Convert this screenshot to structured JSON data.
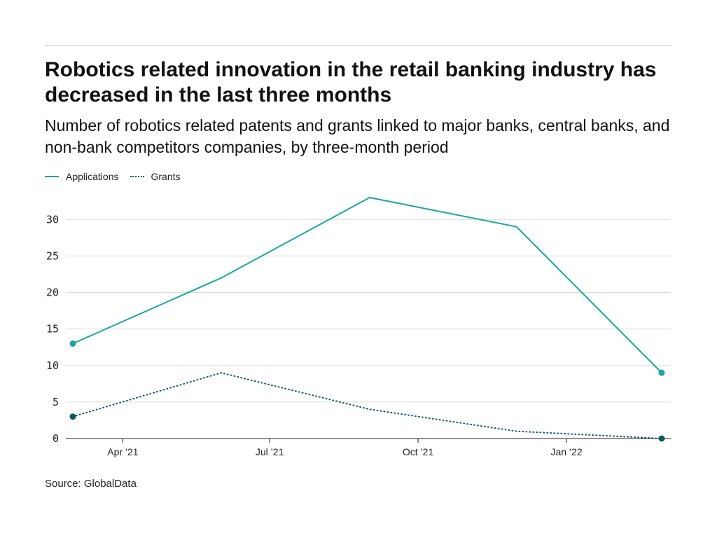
{
  "header": {
    "title": "Robotics related innovation in the retail banking industry has decreased in the last three months",
    "subtitle": "Number of robotics related patents and grants linked to major banks, central banks, and non-bank competitors companies, by three-month period"
  },
  "legend": [
    {
      "label": "Applications",
      "style": "solid",
      "color": "#1aa5a0"
    },
    {
      "label": "Grants",
      "style": "dotted",
      "color": "#0f5a5e"
    }
  ],
  "source": "Source: GlobalData",
  "chart_data": {
    "type": "line",
    "x": [
      "2021-03-01",
      "2021-06-01",
      "2021-09-01",
      "2021-12-01",
      "2022-03-01"
    ],
    "series": [
      {
        "name": "Applications",
        "values": [
          13,
          22,
          33,
          29,
          9
        ],
        "color": "#1aa5a0",
        "style": "solid"
      },
      {
        "name": "Grants",
        "values": [
          3,
          9,
          4,
          1,
          0
        ],
        "color": "#0f5a5e",
        "style": "dotted"
      }
    ],
    "xticks": [
      {
        "label": "Apr ’21",
        "date": "2021-04-01"
      },
      {
        "label": "Jul ’21",
        "date": "2021-07-01"
      },
      {
        "label": "Oct ’21",
        "date": "2021-10-01"
      },
      {
        "label": "Jan ’22",
        "date": "2022-01-01"
      }
    ],
    "yticks": [
      0,
      5,
      10,
      15,
      20,
      25,
      30
    ],
    "ylim": [
      0,
      33
    ],
    "grid": true,
    "legend_position": "top-left",
    "markers": "endpoints"
  }
}
